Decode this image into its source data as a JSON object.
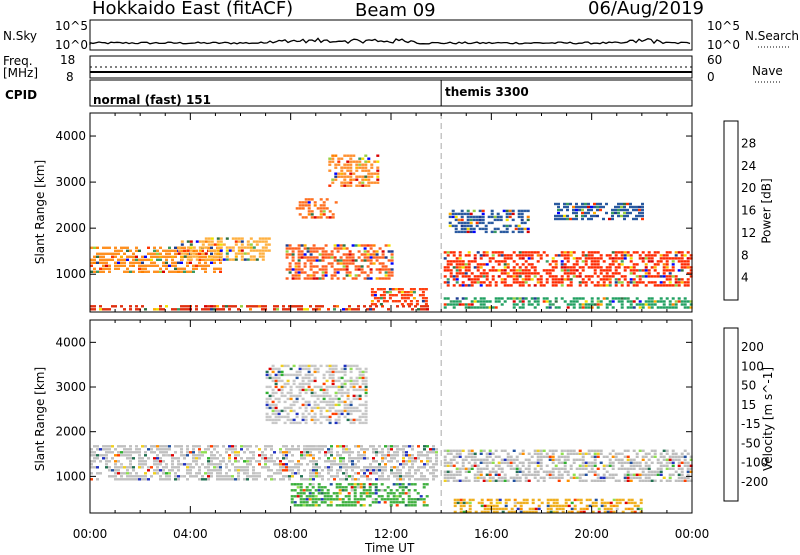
{
  "header": {
    "station": "Hokkaido East (fitACF)",
    "beam": "Beam 09",
    "date": "06/Aug/2019"
  },
  "top_panels": {
    "nsky_label": "N.Sky",
    "nsky_ticks": [
      "10^5",
      "10^0"
    ],
    "nsearch_label": "N.Search",
    "nsearch_ticks": [
      "10^5",
      "10^0"
    ],
    "freq_label": "Freq.",
    "freq_unit": "[MHz]",
    "freq_ticks": [
      "18",
      "8"
    ],
    "nave_label": "Nave",
    "nave_ticks": [
      "60",
      "0"
    ],
    "cpid_label": "CPID",
    "cpid_modes": [
      {
        "label": "normal (fast) 151",
        "start_hour": 0
      },
      {
        "label": "themis 3300",
        "start_hour": 14
      }
    ]
  },
  "chart_data": [
    {
      "type": "heatmap",
      "name": "power",
      "ylabel": "Slant Range [km]",
      "ylim": [
        180,
        4500
      ],
      "yticks": [
        1000,
        2000,
        3000,
        4000
      ],
      "xlim": [
        0,
        24
      ],
      "colorbar": {
        "label": "Power [dB]",
        "ticks": [
          "28",
          "24",
          "20",
          "16",
          "12",
          "8",
          "4"
        ],
        "colors": [
          "#d90000",
          "#ff3300",
          "#ff8000",
          "#ffb000",
          "#f2e000",
          "#99d040",
          "#3a9a60",
          "#307040",
          "#1c3c90",
          "#0000ff"
        ]
      },
      "regions": [
        {
          "t0": 0.0,
          "t1": 13.6,
          "r0": 200,
          "r1": 330,
          "color": "#e03010"
        },
        {
          "t0": 0.0,
          "t1": 5.2,
          "r0": 1050,
          "r1": 1600,
          "color": "#ff9020"
        },
        {
          "t0": 3.5,
          "t1": 7.2,
          "r0": 1300,
          "r1": 1800,
          "color": "#ffb040"
        },
        {
          "t0": 7.8,
          "t1": 12.0,
          "r0": 900,
          "r1": 1650,
          "color": "#ff6020"
        },
        {
          "t0": 8.2,
          "t1": 9.8,
          "r0": 2250,
          "r1": 2650,
          "color": "#ff7020"
        },
        {
          "t0": 9.5,
          "t1": 11.5,
          "r0": 2900,
          "r1": 3600,
          "color": "#ff9030"
        },
        {
          "t0": 11.2,
          "t1": 13.4,
          "r0": 350,
          "r1": 700,
          "color": "#ff4010"
        },
        {
          "t0": 14.1,
          "t1": 24.0,
          "r0": 750,
          "r1": 1500,
          "color": "#ff2a00"
        },
        {
          "t0": 14.1,
          "t1": 24.0,
          "r0": 300,
          "r1": 500,
          "color": "#20a060"
        },
        {
          "t0": 14.3,
          "t1": 17.5,
          "r0": 1900,
          "r1": 2400,
          "color": "#2a5aa0"
        },
        {
          "t0": 18.5,
          "t1": 22.0,
          "r0": 2200,
          "r1": 2550,
          "color": "#2a5aa0"
        }
      ]
    },
    {
      "type": "heatmap",
      "name": "velocity",
      "ylabel": "Slant Range [km]",
      "ylim": [
        180,
        4500
      ],
      "yticks": [
        1000,
        2000,
        3000,
        4000
      ],
      "xlim": [
        0,
        24
      ],
      "colorbar": {
        "label": "Velocity [m s^-1]",
        "ticks": [
          "200",
          "100",
          "50",
          "15",
          "-15",
          "-50",
          "-100",
          "-200"
        ],
        "colors": [
          "#2030c0",
          "#2050a0",
          "#207050",
          "#30b030",
          "#90e050",
          "#c8c8c8",
          "#f0d020",
          "#ff9000",
          "#ff4000",
          "#e00000"
        ]
      },
      "regions": [
        {
          "t0": 0.0,
          "t1": 13.8,
          "r0": 900,
          "r1": 1700,
          "color": "#c0c0c0"
        },
        {
          "t0": 7.0,
          "t1": 11.0,
          "r0": 2200,
          "r1": 3500,
          "color": "#c8c8c8"
        },
        {
          "t0": 8.0,
          "t1": 13.5,
          "r0": 350,
          "r1": 850,
          "color": "#40b040"
        },
        {
          "t0": 14.1,
          "t1": 24.0,
          "r0": 900,
          "r1": 1600,
          "color": "#bebebe"
        },
        {
          "t0": 14.5,
          "t1": 22.0,
          "r0": 200,
          "r1": 500,
          "color": "#f0b020"
        }
      ]
    }
  ],
  "x_axis": {
    "ticks": [
      "00:00",
      "04:00",
      "08:00",
      "12:00",
      "16:00",
      "20:00",
      "00:00"
    ],
    "label": "Time UT"
  }
}
